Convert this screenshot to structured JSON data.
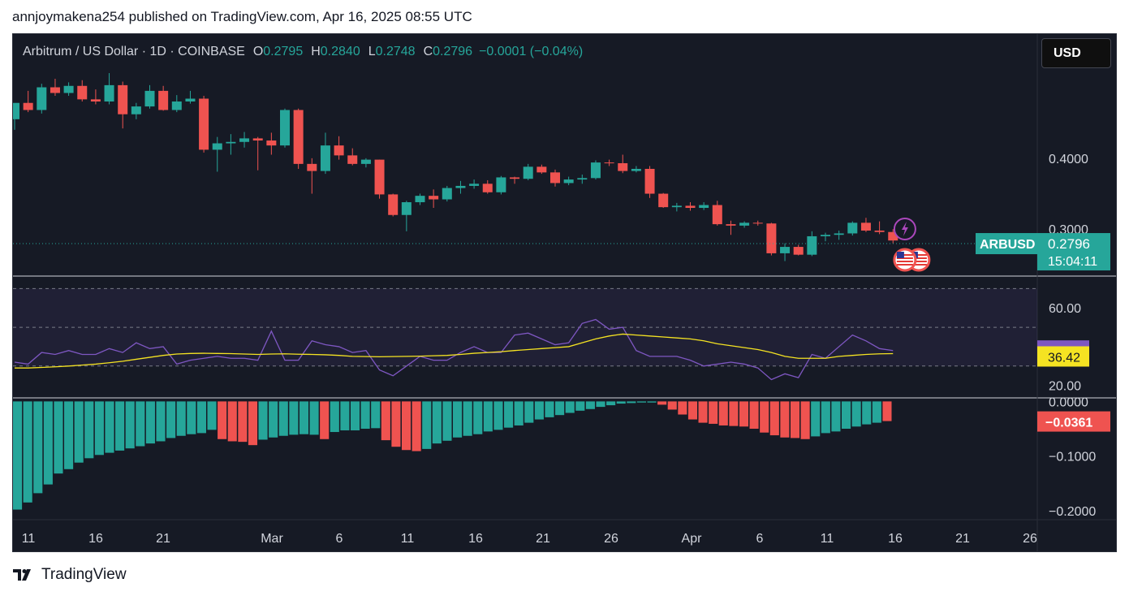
{
  "header": {
    "text": "annjoymakena254 published on TradingView.com, Apr 16, 2025 08:55 UTC"
  },
  "legend": {
    "symbol": "Arbitrum / US Dollar · 1D · COINBASE",
    "o_label": "O",
    "o_value": "0.2795",
    "h_label": "H",
    "h_value": "0.2840",
    "l_label": "L",
    "l_value": "0.2748",
    "c_label": "C",
    "c_value": "0.2796",
    "change": "−0.0001 (−0.04%)"
  },
  "currency_button": "USD",
  "footer": {
    "brand": "TradingView"
  },
  "colors": {
    "up": "#26a69a",
    "down": "#ef5350",
    "rsi": "#7e57c2",
    "rsi_ma": "#f5e322",
    "background": "#161a25",
    "axis_text": "#d1d4dc"
  },
  "chart_data": [
    {
      "type": "candlestick",
      "title": "Arbitrum / US Dollar · 1D · COINBASE",
      "symbol_label": "ARBUSD",
      "last_price": "0.2796",
      "countdown": "15:04:11",
      "ylim": [
        0.235,
        0.575
      ],
      "y_ticks": [
        0.3,
        0.4
      ],
      "y_tick_labels": [
        "0.3000",
        "0.4000"
      ],
      "x_ticks": [
        "11",
        "16",
        "21",
        "Mar",
        "6",
        "11",
        "16",
        "21",
        "26",
        "Apr",
        "6",
        "11",
        "16",
        "21",
        "26"
      ],
      "candles": [
        {
          "o": 0.455,
          "h": 0.475,
          "l": 0.44,
          "c": 0.478
        },
        {
          "o": 0.478,
          "h": 0.495,
          "l": 0.465,
          "c": 0.468
        },
        {
          "o": 0.468,
          "h": 0.505,
          "l": 0.463,
          "c": 0.5
        },
        {
          "o": 0.5,
          "h": 0.512,
          "l": 0.488,
          "c": 0.492
        },
        {
          "o": 0.492,
          "h": 0.507,
          "l": 0.488,
          "c": 0.502
        },
        {
          "o": 0.502,
          "h": 0.51,
          "l": 0.48,
          "c": 0.483
        },
        {
          "o": 0.483,
          "h": 0.497,
          "l": 0.476,
          "c": 0.48
        },
        {
          "o": 0.48,
          "h": 0.52,
          "l": 0.476,
          "c": 0.503
        },
        {
          "o": 0.503,
          "h": 0.508,
          "l": 0.442,
          "c": 0.462
        },
        {
          "o": 0.462,
          "h": 0.478,
          "l": 0.455,
          "c": 0.473
        },
        {
          "o": 0.473,
          "h": 0.503,
          "l": 0.47,
          "c": 0.495
        },
        {
          "o": 0.495,
          "h": 0.502,
          "l": 0.467,
          "c": 0.468
        },
        {
          "o": 0.468,
          "h": 0.489,
          "l": 0.465,
          "c": 0.48
        },
        {
          "o": 0.48,
          "h": 0.495,
          "l": 0.477,
          "c": 0.484
        },
        {
          "o": 0.484,
          "h": 0.488,
          "l": 0.408,
          "c": 0.412
        },
        {
          "o": 0.412,
          "h": 0.43,
          "l": 0.381,
          "c": 0.421
        },
        {
          "o": 0.421,
          "h": 0.434,
          "l": 0.405,
          "c": 0.423
        },
        {
          "o": 0.423,
          "h": 0.437,
          "l": 0.415,
          "c": 0.428
        },
        {
          "o": 0.428,
          "h": 0.43,
          "l": 0.383,
          "c": 0.425
        },
        {
          "o": 0.425,
          "h": 0.436,
          "l": 0.405,
          "c": 0.418
        },
        {
          "o": 0.418,
          "h": 0.47,
          "l": 0.415,
          "c": 0.468
        },
        {
          "o": 0.468,
          "h": 0.47,
          "l": 0.385,
          "c": 0.392
        },
        {
          "o": 0.392,
          "h": 0.4,
          "l": 0.35,
          "c": 0.382
        },
        {
          "o": 0.382,
          "h": 0.436,
          "l": 0.378,
          "c": 0.418
        },
        {
          "o": 0.418,
          "h": 0.431,
          "l": 0.398,
          "c": 0.404
        },
        {
          "o": 0.404,
          "h": 0.414,
          "l": 0.39,
          "c": 0.392
        },
        {
          "o": 0.392,
          "h": 0.4,
          "l": 0.387,
          "c": 0.398
        },
        {
          "o": 0.398,
          "h": 0.398,
          "l": 0.343,
          "c": 0.349
        },
        {
          "o": 0.349,
          "h": 0.35,
          "l": 0.318,
          "c": 0.32
        },
        {
          "o": 0.32,
          "h": 0.34,
          "l": 0.297,
          "c": 0.338
        },
        {
          "o": 0.338,
          "h": 0.35,
          "l": 0.334,
          "c": 0.347
        },
        {
          "o": 0.347,
          "h": 0.356,
          "l": 0.33,
          "c": 0.342
        },
        {
          "o": 0.342,
          "h": 0.361,
          "l": 0.339,
          "c": 0.358
        },
        {
          "o": 0.358,
          "h": 0.368,
          "l": 0.35,
          "c": 0.361
        },
        {
          "o": 0.361,
          "h": 0.37,
          "l": 0.357,
          "c": 0.364
        },
        {
          "o": 0.364,
          "h": 0.369,
          "l": 0.35,
          "c": 0.352
        },
        {
          "o": 0.352,
          "h": 0.375,
          "l": 0.349,
          "c": 0.373
        },
        {
          "o": 0.373,
          "h": 0.374,
          "l": 0.364,
          "c": 0.371
        },
        {
          "o": 0.371,
          "h": 0.392,
          "l": 0.369,
          "c": 0.388
        },
        {
          "o": 0.388,
          "h": 0.391,
          "l": 0.378,
          "c": 0.38
        },
        {
          "o": 0.38,
          "h": 0.384,
          "l": 0.36,
          "c": 0.365
        },
        {
          "o": 0.365,
          "h": 0.374,
          "l": 0.362,
          "c": 0.37
        },
        {
          "o": 0.37,
          "h": 0.377,
          "l": 0.364,
          "c": 0.372
        },
        {
          "o": 0.372,
          "h": 0.397,
          "l": 0.37,
          "c": 0.394
        },
        {
          "o": 0.394,
          "h": 0.398,
          "l": 0.389,
          "c": 0.393
        },
        {
          "o": 0.393,
          "h": 0.405,
          "l": 0.379,
          "c": 0.382
        },
        {
          "o": 0.382,
          "h": 0.389,
          "l": 0.38,
          "c": 0.385
        },
        {
          "o": 0.385,
          "h": 0.389,
          "l": 0.344,
          "c": 0.35
        },
        {
          "o": 0.35,
          "h": 0.351,
          "l": 0.33,
          "c": 0.331
        },
        {
          "o": 0.331,
          "h": 0.337,
          "l": 0.325,
          "c": 0.333
        },
        {
          "o": 0.333,
          "h": 0.338,
          "l": 0.326,
          "c": 0.33
        },
        {
          "o": 0.33,
          "h": 0.338,
          "l": 0.327,
          "c": 0.334
        },
        {
          "o": 0.334,
          "h": 0.34,
          "l": 0.305,
          "c": 0.307
        },
        {
          "o": 0.307,
          "h": 0.312,
          "l": 0.292,
          "c": 0.305
        },
        {
          "o": 0.305,
          "h": 0.311,
          "l": 0.302,
          "c": 0.309
        },
        {
          "o": 0.309,
          "h": 0.312,
          "l": 0.305,
          "c": 0.308
        },
        {
          "o": 0.308,
          "h": 0.309,
          "l": 0.263,
          "c": 0.266
        },
        {
          "o": 0.266,
          "h": 0.28,
          "l": 0.255,
          "c": 0.275
        },
        {
          "o": 0.275,
          "h": 0.278,
          "l": 0.263,
          "c": 0.264
        },
        {
          "o": 0.264,
          "h": 0.297,
          "l": 0.262,
          "c": 0.29
        },
        {
          "o": 0.29,
          "h": 0.295,
          "l": 0.283,
          "c": 0.292
        },
        {
          "o": 0.292,
          "h": 0.298,
          "l": 0.285,
          "c": 0.294
        },
        {
          "o": 0.294,
          "h": 0.311,
          "l": 0.291,
          "c": 0.309
        },
        {
          "o": 0.309,
          "h": 0.316,
          "l": 0.296,
          "c": 0.298
        },
        {
          "o": 0.298,
          "h": 0.311,
          "l": 0.293,
          "c": 0.296
        },
        {
          "o": 0.296,
          "h": 0.3,
          "l": 0.28,
          "c": 0.284
        }
      ]
    },
    {
      "type": "line",
      "title": "RSI",
      "ylim": [
        14,
        76
      ],
      "y_ticks": [
        20,
        60
      ],
      "y_tick_labels": [
        "20.00",
        "60.00"
      ],
      "bands": [
        30,
        50,
        70
      ],
      "series": [
        {
          "label_value": "37.81",
          "values": [
            32,
            31,
            37,
            36,
            38,
            36,
            36,
            39,
            37,
            42,
            39,
            40,
            31,
            33,
            34,
            35,
            34,
            34,
            33,
            48,
            33,
            33,
            43,
            41,
            40,
            37,
            38,
            28,
            25,
            30,
            35,
            33,
            33,
            37,
            40,
            37,
            37,
            46,
            47,
            44,
            41,
            42,
            52,
            54,
            49,
            50,
            38,
            35,
            35,
            35,
            33,
            30,
            31,
            32,
            31,
            29,
            23,
            26,
            24,
            36,
            34,
            40,
            46,
            43,
            39,
            38
          ]
        },
        {
          "label_value": "36.42",
          "values": [
            29,
            29,
            29.3,
            29.6,
            30,
            30.5,
            31,
            31.7,
            32.5,
            33.5,
            34.5,
            35.5,
            36.2,
            36.5,
            36.6,
            36.5,
            36.4,
            36.2,
            36,
            36.2,
            36.3,
            36.1,
            36,
            35.8,
            35.5,
            35,
            34.9,
            34.8,
            34.9,
            35,
            35.1,
            35.3,
            35.5,
            36,
            36.6,
            37,
            37.4,
            38,
            38.5,
            39,
            39.5,
            40,
            42,
            44,
            45.5,
            46.5,
            46,
            45.5,
            45,
            44.5,
            44,
            43,
            41.5,
            40.5,
            39.5,
            38.5,
            37,
            35,
            34,
            34,
            34,
            35,
            35.5,
            36,
            36.3,
            36.4
          ]
        }
      ]
    },
    {
      "type": "bar",
      "title": "MACD histogram",
      "ylim": [
        -0.215,
        0.005
      ],
      "y_ticks": [
        0,
        -0.1,
        -0.2
      ],
      "y_tick_labels": [
        "0.0000",
        "−0.1000",
        "−0.2000"
      ],
      "last_label": "−0.0361",
      "values": [
        -0.198,
        -0.185,
        -0.168,
        -0.152,
        -0.132,
        -0.124,
        -0.112,
        -0.104,
        -0.098,
        -0.094,
        -0.09,
        -0.086,
        -0.082,
        -0.077,
        -0.073,
        -0.067,
        -0.063,
        -0.06,
        -0.058,
        -0.052,
        -0.069,
        -0.073,
        -0.074,
        -0.08,
        -0.07,
        -0.066,
        -0.063,
        -0.061,
        -0.06,
        -0.061,
        -0.069,
        -0.056,
        -0.053,
        -0.053,
        -0.05,
        -0.049,
        -0.071,
        -0.083,
        -0.089,
        -0.091,
        -0.087,
        -0.077,
        -0.072,
        -0.066,
        -0.063,
        -0.06,
        -0.055,
        -0.052,
        -0.048,
        -0.044,
        -0.039,
        -0.033,
        -0.029,
        -0.025,
        -0.021,
        -0.017,
        -0.014,
        -0.01,
        -0.007,
        -0.004,
        -0.003,
        -0.002,
        -0.002,
        -0.006,
        -0.015,
        -0.024,
        -0.033,
        -0.039,
        -0.041,
        -0.044,
        -0.045,
        -0.046,
        -0.05,
        -0.057,
        -0.062,
        -0.066,
        -0.067,
        -0.069,
        -0.064,
        -0.058,
        -0.055,
        -0.05,
        -0.046,
        -0.042,
        -0.039,
        -0.036
      ],
      "colors": [
        "u",
        "u",
        "u",
        "u",
        "u",
        "u",
        "u",
        "u",
        "u",
        "u",
        "u",
        "u",
        "u",
        "u",
        "u",
        "u",
        "u",
        "u",
        "u",
        "u",
        "d",
        "d",
        "d",
        "d",
        "u",
        "u",
        "u",
        "u",
        "u",
        "u",
        "d",
        "u",
        "u",
        "u",
        "u",
        "u",
        "d",
        "d",
        "d",
        "d",
        "u",
        "u",
        "u",
        "u",
        "u",
        "u",
        "u",
        "u",
        "u",
        "u",
        "u",
        "u",
        "u",
        "u",
        "u",
        "u",
        "u",
        "u",
        "u",
        "u",
        "u",
        "u",
        "u",
        "d",
        "d",
        "d",
        "d",
        "d",
        "d",
        "d",
        "d",
        "d",
        "d",
        "d",
        "d",
        "d",
        "d",
        "d",
        "u",
        "u",
        "u",
        "u",
        "u",
        "u",
        "u",
        "d"
      ]
    }
  ]
}
